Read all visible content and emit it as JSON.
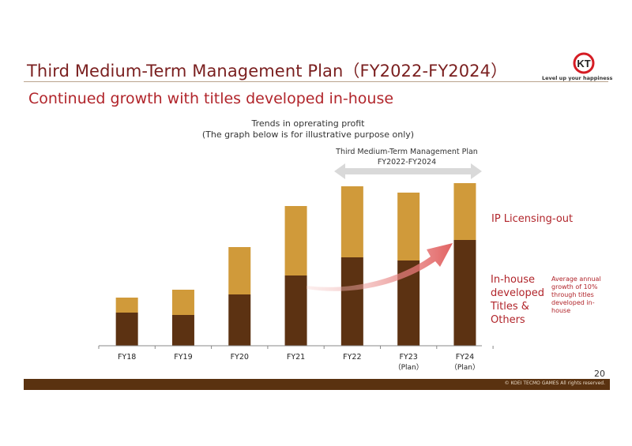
{
  "slide": {
    "title": "Third Medium-Term Management Plan（FY2022-FY2024）",
    "subtitle": "Continued growth with titles developed in-house",
    "page_number": "20",
    "copyright": "© KOEI TECMO GAMES All rights reserved."
  },
  "logo": {
    "icon": "kt-logo-icon",
    "tagline": "Level up your happiness"
  },
  "chart_caption": {
    "line1": "Trends in oprerating profit",
    "line2": "(The graph below is for illustrative purpose only)"
  },
  "plan_caption": {
    "line1": "Third Medium-Term Management Plan",
    "line2": "FY2022-FY2024"
  },
  "labels": {
    "ip_licensing": "IP Licensing-out",
    "inhouse": "In-house developed Titles & Others",
    "growth_note": "Average annual growth of 10% through titles developed in-house"
  },
  "colors": {
    "inhouse": "#5c3212",
    "ip": "#d09a3a",
    "accent": "#b1252b",
    "arrow": "#e06a6a"
  },
  "chart_data": {
    "type": "bar",
    "stacked": true,
    "categories": [
      {
        "line1": "FY18",
        "line2": ""
      },
      {
        "line1": "FY19",
        "line2": ""
      },
      {
        "line1": "FY20",
        "line2": ""
      },
      {
        "line1": "FY21",
        "line2": ""
      },
      {
        "line1": "FY22",
        "line2": ""
      },
      {
        "line1": "FY23",
        "line2": "（Plan）"
      },
      {
        "line1": "FY24",
        "line2": "（Plan）"
      }
    ],
    "series": [
      {
        "name": "In-house developed Titles & Others",
        "values": [
          42,
          39,
          65,
          89,
          112,
          108,
          134
        ]
      },
      {
        "name": "IP Licensing-out",
        "values": [
          19,
          32,
          60,
          88,
          90,
          86,
          72
        ]
      }
    ],
    "ylim": [
      0,
      210
    ],
    "y_axis_shown": false,
    "grid": false
  }
}
